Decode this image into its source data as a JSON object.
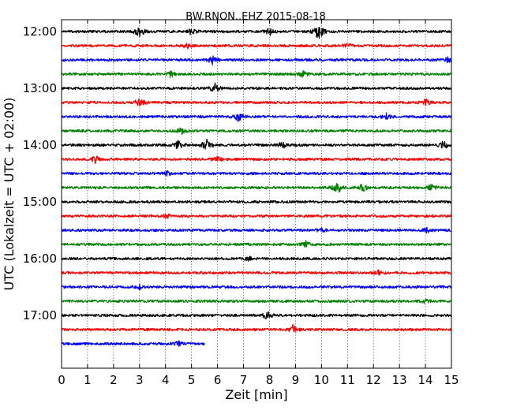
{
  "chart_data": {
    "type": "line",
    "title": "BW.RNON..EHZ 2015-08-18",
    "xlabel": "Zeit  [min]",
    "ylabel": "UTC (Lokalzeit = UTC + 02:00)",
    "xlim": [
      0,
      15
    ],
    "x_ticks": [
      "0",
      "1",
      "2",
      "3",
      "4",
      "5",
      "6",
      "7",
      "8",
      "9",
      "10",
      "11",
      "12",
      "13",
      "14",
      "15"
    ],
    "y_ticks": [
      "12:00",
      "13:00",
      "14:00",
      "15:00",
      "16:00",
      "17:00"
    ],
    "grid": "vertical dotted",
    "line_duration_min": 15,
    "colors": [
      "#000000",
      "#ff0000",
      "#0000ff",
      "#008000"
    ],
    "series": [
      {
        "start": "12:00",
        "color": "#000000",
        "duration_min": 15,
        "events": [
          {
            "x": 3.0,
            "amp": 0.55
          },
          {
            "x": 9.9,
            "amp": 0.9
          },
          {
            "x": 5.0,
            "amp": 0.3
          },
          {
            "x": 8.0,
            "amp": 0.35
          }
        ]
      },
      {
        "start": "12:15",
        "color": "#ff0000",
        "duration_min": 15,
        "events": [
          {
            "x": 4.8,
            "amp": 0.3
          },
          {
            "x": 11.0,
            "amp": 0.25
          }
        ]
      },
      {
        "start": "12:30",
        "color": "#0000ff",
        "duration_min": 15,
        "events": [
          {
            "x": 5.8,
            "amp": 0.35
          },
          {
            "x": 14.9,
            "amp": 0.3
          }
        ]
      },
      {
        "start": "12:45",
        "color": "#008000",
        "duration_min": 15,
        "events": [
          {
            "x": 4.2,
            "amp": 0.3
          },
          {
            "x": 9.3,
            "amp": 0.25
          }
        ]
      },
      {
        "start": "13:00",
        "color": "#000000",
        "duration_min": 15,
        "events": [
          {
            "x": 5.9,
            "amp": 0.45
          }
        ]
      },
      {
        "start": "13:15",
        "color": "#ff0000",
        "duration_min": 15,
        "events": [
          {
            "x": 3.0,
            "amp": 0.45
          },
          {
            "x": 14.0,
            "amp": 0.3
          }
        ]
      },
      {
        "start": "13:30",
        "color": "#0000ff",
        "duration_min": 15,
        "events": [
          {
            "x": 6.8,
            "amp": 0.4
          },
          {
            "x": 12.5,
            "amp": 0.25
          }
        ]
      },
      {
        "start": "13:45",
        "color": "#008000",
        "duration_min": 15,
        "events": [
          {
            "x": 4.6,
            "amp": 0.3
          }
        ]
      },
      {
        "start": "14:00",
        "color": "#000000",
        "duration_min": 15,
        "events": [
          {
            "x": 4.5,
            "amp": 0.45
          },
          {
            "x": 5.6,
            "amp": 0.7
          },
          {
            "x": 8.5,
            "amp": 0.35
          },
          {
            "x": 14.7,
            "amp": 0.4
          }
        ]
      },
      {
        "start": "14:15",
        "color": "#ff0000",
        "duration_min": 15,
        "events": [
          {
            "x": 1.3,
            "amp": 0.35
          },
          {
            "x": 6.0,
            "amp": 0.25
          }
        ]
      },
      {
        "start": "14:30",
        "color": "#0000ff",
        "duration_min": 15,
        "events": [
          {
            "x": 4.1,
            "amp": 0.2
          }
        ]
      },
      {
        "start": "14:45",
        "color": "#008000",
        "duration_min": 15,
        "events": [
          {
            "x": 10.6,
            "amp": 0.6
          },
          {
            "x": 11.6,
            "amp": 0.4
          },
          {
            "x": 14.2,
            "amp": 0.35
          }
        ]
      },
      {
        "start": "15:00",
        "color": "#000000",
        "duration_min": 15,
        "events": []
      },
      {
        "start": "15:15",
        "color": "#ff0000",
        "duration_min": 15,
        "events": [
          {
            "x": 4.0,
            "amp": 0.2
          }
        ]
      },
      {
        "start": "15:30",
        "color": "#0000ff",
        "duration_min": 15,
        "events": [
          {
            "x": 10.0,
            "amp": 0.25
          },
          {
            "x": 14.1,
            "amp": 0.25
          }
        ]
      },
      {
        "start": "15:45",
        "color": "#008000",
        "duration_min": 15,
        "events": [
          {
            "x": 9.4,
            "amp": 0.25
          }
        ]
      },
      {
        "start": "16:00",
        "color": "#000000",
        "duration_min": 15,
        "events": [
          {
            "x": 7.2,
            "amp": 0.2
          }
        ]
      },
      {
        "start": "16:15",
        "color": "#ff0000",
        "duration_min": 15,
        "events": [
          {
            "x": 12.2,
            "amp": 0.2
          }
        ]
      },
      {
        "start": "16:30",
        "color": "#0000ff",
        "duration_min": 15,
        "events": [
          {
            "x": 3.0,
            "amp": 0.2
          }
        ]
      },
      {
        "start": "16:45",
        "color": "#008000",
        "duration_min": 15,
        "events": [
          {
            "x": 14.0,
            "amp": 0.2
          }
        ]
      },
      {
        "start": "17:00",
        "color": "#000000",
        "duration_min": 15,
        "events": [
          {
            "x": 7.9,
            "amp": 0.4
          }
        ]
      },
      {
        "start": "17:15",
        "color": "#ff0000",
        "duration_min": 15,
        "events": [
          {
            "x": 8.9,
            "amp": 0.45
          }
        ]
      },
      {
        "start": "17:30",
        "color": "#0000ff",
        "duration_min": 5.5,
        "events": [
          {
            "x": 4.5,
            "amp": 0.25
          }
        ]
      }
    ]
  }
}
